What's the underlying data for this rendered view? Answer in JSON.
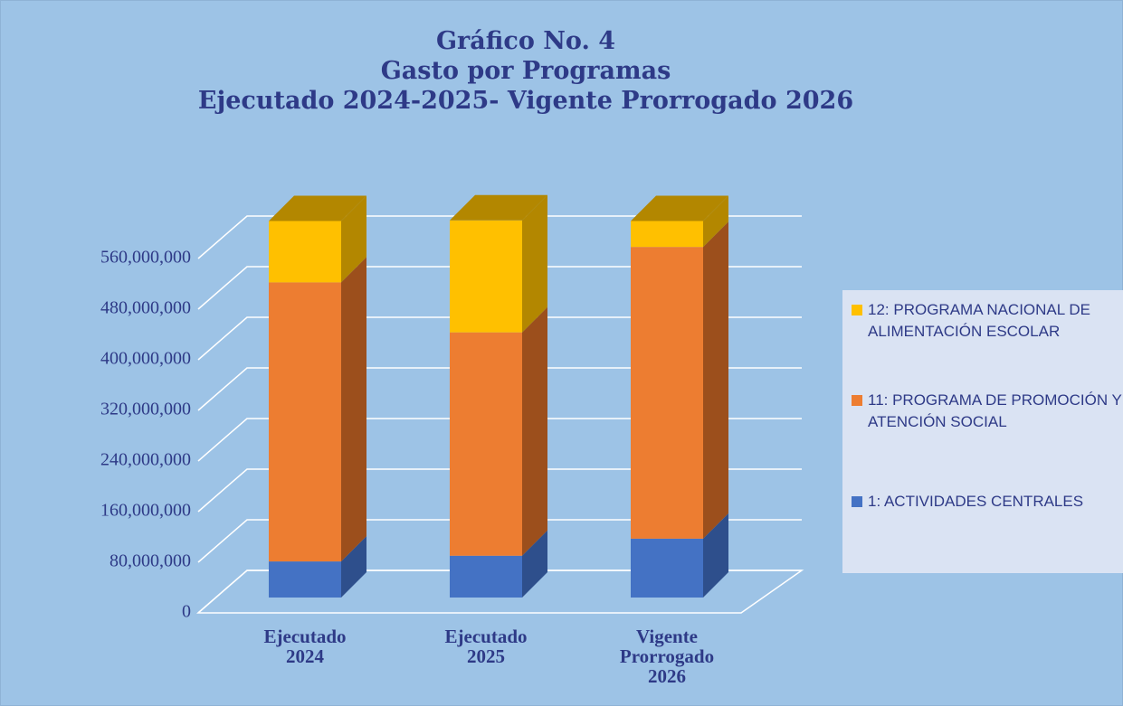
{
  "chart_data": {
    "type": "bar3d_stacked",
    "title": [
      "Gráfico No. 4",
      "Gasto por Programas",
      "Ejecutado 2024-2025- Vigente Prorrogado 2026"
    ],
    "categories": [
      "Ejecutado 2024",
      "Ejecutado 2025",
      "Vigente Prorrogado 2026"
    ],
    "series": [
      {
        "name": "1: ACTIVIDADES CENTRALES",
        "color": "#4472c4",
        "side": "#2e4f8c",
        "values": [
          57000000,
          66000000,
          93000000
        ]
      },
      {
        "name": "11: PROGRAMA DE PROMOCIÓN Y ATENCIÓN SOCIAL",
        "color": "#ed7d31",
        "side": "#9c4f1c",
        "values": [
          441000000,
          353000000,
          461000000
        ]
      },
      {
        "name": "12: PROGRAMA NACIONAL DE ALIMENTACIÓN ESCOLAR",
        "color": "#ffc000",
        "side": "#b38700",
        "values": [
          97000000,
          177000000,
          41000000
        ]
      }
    ],
    "ylim": [
      0,
      640000000
    ],
    "yticks": [
      0,
      {
        "value": 80000000,
        "label": "80,000,000"
      },
      {
        "value": 160000000,
        "label": "160,000,000"
      },
      {
        "value": 240000000,
        "label": "240,000,000"
      },
      {
        "value": 320000000,
        "label": "320,000,000"
      },
      {
        "value": 400000000,
        "label": "400,000,000"
      },
      {
        "value": 480000000,
        "label": "480,000,000"
      },
      {
        "value": 560000000,
        "label": "560,000,000"
      }
    ],
    "grid": true,
    "legend": "right"
  }
}
